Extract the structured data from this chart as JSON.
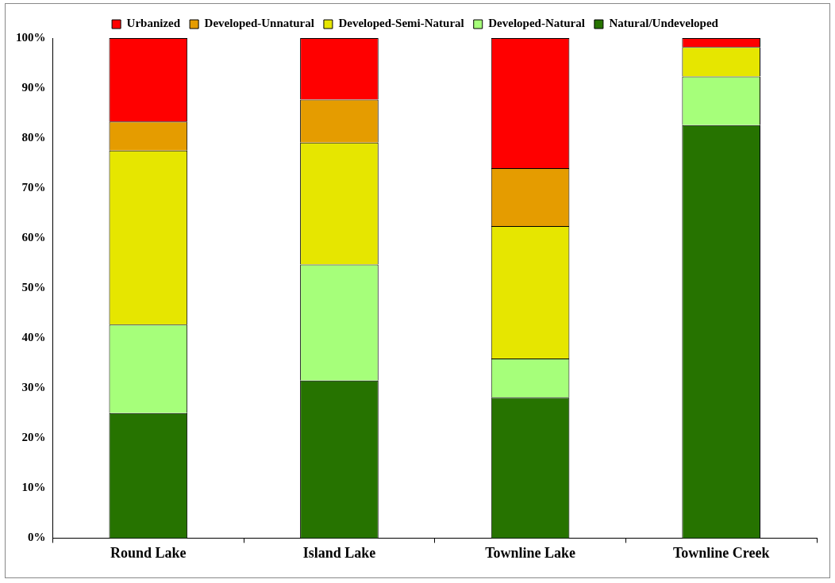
{
  "chart_data": {
    "type": "bar",
    "stacked": true,
    "legend": "top",
    "grid": false,
    "categories": [
      "Round Lake",
      "Island Lake",
      "Townline Lake",
      "Townline Creek"
    ],
    "series": [
      {
        "name": "Natural/Undeveloped",
        "color": "#267300",
        "values": [
          25,
          31.5,
          28.1,
          82.6
        ]
      },
      {
        "name": "Developed-Natural",
        "color": "#a6ff7a",
        "values": [
          17.7,
          23.2,
          7.8,
          9.7
        ]
      },
      {
        "name": "Developed-Semi-Natural",
        "color": "#e6e600",
        "values": [
          34.8,
          24.4,
          26.5,
          5.9
        ]
      },
      {
        "name": "Developed-Unnatural",
        "color": "#e59c00",
        "values": [
          5.8,
          8.6,
          11.6,
          0
        ]
      },
      {
        "name": "Urbanized",
        "color": "#ff0000",
        "values": [
          16.7,
          12.3,
          26,
          1.8
        ]
      }
    ],
    "ylim": [
      0,
      100
    ],
    "yticks": [
      {
        "value": 0,
        "label": "0%"
      },
      {
        "value": 10,
        "label": "10%"
      },
      {
        "value": 20,
        "label": "20%"
      },
      {
        "value": 30,
        "label": "30%"
      },
      {
        "value": 40,
        "label": "40%"
      },
      {
        "value": 50,
        "label": "50%"
      },
      {
        "value": 60,
        "label": "60%"
      },
      {
        "value": 70,
        "label": "70%"
      },
      {
        "value": 80,
        "label": "80%"
      },
      {
        "value": 90,
        "label": "90%"
      },
      {
        "value": 100,
        "label": "100%"
      }
    ]
  }
}
